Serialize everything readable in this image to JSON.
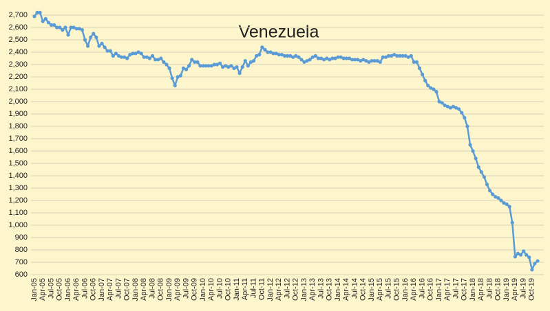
{
  "chart_data": {
    "type": "line",
    "title": "Venezuela",
    "categories": [
      "Jan-05",
      null,
      null,
      "Apr-05",
      null,
      null,
      "Jul-05",
      null,
      null,
      "Oct-05",
      null,
      null,
      "Jan-06",
      null,
      null,
      "Apr-06",
      null,
      null,
      "Jul-06",
      null,
      null,
      "Oct-06",
      null,
      null,
      "Jan-07",
      null,
      null,
      "Apr-07",
      null,
      null,
      "Jul-07",
      null,
      null,
      "Oct-07",
      null,
      null,
      "Jan-08",
      null,
      null,
      "Apr-08",
      null,
      null,
      "Jul-08",
      null,
      null,
      "Oct-08",
      null,
      null,
      "Jan-09",
      null,
      null,
      "Apr-09",
      null,
      null,
      "Jul-09",
      null,
      null,
      "Oct-09",
      null,
      null,
      "Jan-10",
      null,
      null,
      "Apr-10",
      null,
      null,
      "Jul-10",
      null,
      null,
      "Oct-10",
      null,
      null,
      "Jan-11",
      null,
      null,
      "Apr-11",
      null,
      null,
      "Jul-11",
      null,
      null,
      "Oct-11",
      null,
      null,
      "Jan-12",
      null,
      null,
      "Apr-12",
      null,
      null,
      "Jul-12",
      null,
      null,
      "Oct-12",
      null,
      null,
      "Jan-13",
      null,
      null,
      "Apr-13",
      null,
      null,
      "Jul-13",
      null,
      null,
      "Oct-13",
      null,
      null,
      "Jan-14",
      null,
      null,
      "Apr-14",
      null,
      null,
      "Jul-14",
      null,
      null,
      "Oct-14",
      null,
      null,
      "Jan-15",
      null,
      null,
      "Apr-15",
      null,
      null,
      "Jul-15",
      null,
      null,
      "Oct-15",
      null,
      null,
      "Jan-16",
      null,
      null,
      "Apr-16",
      null,
      null,
      "Jul-16",
      null,
      null,
      "Oct-16",
      null,
      null,
      "Jan-17",
      null,
      null,
      "Apr-17",
      null,
      null,
      "Jul-17",
      null,
      null,
      "Oct-17",
      null,
      null,
      "Jan-18",
      null,
      null,
      "Apr-18",
      null,
      null,
      "Jul-18",
      null,
      null,
      "Oct-18",
      null,
      null,
      "Jan-19",
      null,
      null,
      "Apr-19",
      null,
      null,
      "Jul-19",
      null,
      null,
      "Oct-19",
      null,
      null
    ],
    "values": [
      2690,
      2720,
      2720,
      2650,
      2670,
      2640,
      2620,
      2620,
      2600,
      2600,
      2580,
      2600,
      2540,
      2600,
      2600,
      2590,
      2590,
      2580,
      2500,
      2450,
      2520,
      2550,
      2520,
      2450,
      2470,
      2440,
      2410,
      2410,
      2370,
      2390,
      2370,
      2360,
      2360,
      2350,
      2380,
      2390,
      2390,
      2400,
      2390,
      2360,
      2360,
      2350,
      2370,
      2340,
      2340,
      2350,
      2320,
      2300,
      2270,
      2190,
      2130,
      2200,
      2210,
      2270,
      2260,
      2290,
      2340,
      2320,
      2320,
      2290,
      2290,
      2290,
      2290,
      2290,
      2300,
      2300,
      2310,
      2280,
      2290,
      2280,
      2290,
      2270,
      2280,
      2230,
      2280,
      2330,
      2290,
      2320,
      2330,
      2370,
      2380,
      2440,
      2420,
      2400,
      2400,
      2390,
      2390,
      2380,
      2380,
      2370,
      2370,
      2370,
      2360,
      2370,
      2360,
      2340,
      2320,
      2330,
      2340,
      2360,
      2370,
      2350,
      2350,
      2340,
      2350,
      2340,
      2350,
      2350,
      2360,
      2360,
      2350,
      2350,
      2350,
      2340,
      2340,
      2340,
      2330,
      2340,
      2330,
      2320,
      2330,
      2330,
      2330,
      2320,
      2360,
      2360,
      2370,
      2370,
      2380,
      2370,
      2370,
      2370,
      2370,
      2360,
      2370,
      2320,
      2320,
      2270,
      2220,
      2170,
      2130,
      2110,
      2100,
      2080,
      2000,
      1990,
      1970,
      1960,
      1950,
      1960,
      1950,
      1940,
      1910,
      1870,
      1800,
      1650,
      1600,
      1540,
      1470,
      1430,
      1390,
      1330,
      1280,
      1250,
      1230,
      1220,
      1200,
      1180,
      1170,
      1150,
      1020,
      745,
      770,
      760,
      790,
      760,
      740,
      640,
      690,
      710
    ],
    "color": "#5b9bd5",
    "ylim": [
      600,
      2750
    ],
    "yticks": [
      600,
      700,
      800,
      900,
      {
        "value": 1000,
        "label": "1,000"
      },
      {
        "value": 1100,
        "label": "1,100"
      },
      {
        "value": 1200,
        "label": "1,200"
      },
      {
        "value": 1300,
        "label": "1,300"
      },
      {
        "value": 1400,
        "label": "1,400"
      },
      {
        "value": 1500,
        "label": "1,500"
      },
      {
        "value": 1600,
        "label": "1,600"
      },
      {
        "value": 1700,
        "label": "1,700"
      },
      {
        "value": 1800,
        "label": "1,800"
      },
      {
        "value": 1900,
        "label": "1,900"
      },
      {
        "value": 2000,
        "label": "2,000"
      },
      {
        "value": 2100,
        "label": "2,100"
      },
      {
        "value": 2200,
        "label": "2,200"
      },
      {
        "value": 2300,
        "label": "2,300"
      },
      {
        "value": 2400,
        "label": "2,400"
      },
      {
        "value": 2500,
        "label": "2,500"
      },
      {
        "value": 2600,
        "label": "2,600"
      },
      {
        "value": 2700,
        "label": "2,700"
      }
    ],
    "grid": true
  }
}
